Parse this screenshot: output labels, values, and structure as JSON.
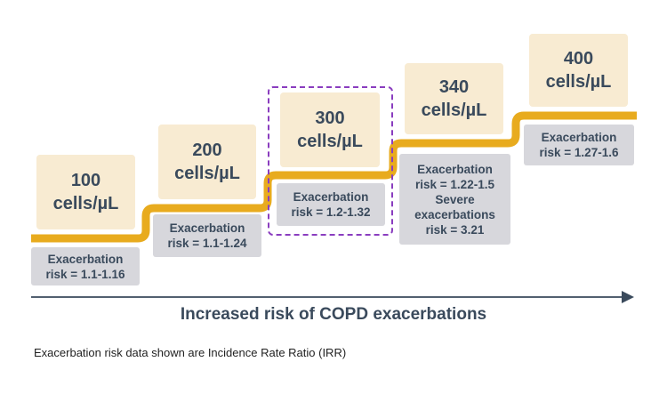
{
  "levels": [
    {
      "value": "100",
      "unit": "cells/µL",
      "risk_line1": "Exacerbation",
      "risk_line2": "risk = 1.1-1.16"
    },
    {
      "value": "200",
      "unit": "cells/µL",
      "risk_line1": "Exacerbation",
      "risk_line2": "risk = 1.1-1.24"
    },
    {
      "value": "300",
      "unit": "cells/µL",
      "risk_line1": "Exacerbation",
      "risk_line2": "risk = 1.2-1.32"
    },
    {
      "value": "340",
      "unit": "cells/µL",
      "risk_line1": "Exacerbation",
      "risk_line2": "risk = 1.22-1.5",
      "severe_line1": "Severe",
      "severe_line2": "exacerbations",
      "severe_line3": "risk = 3.21"
    },
    {
      "value": "400",
      "unit": "cells/µL",
      "risk_line1": "Exacerbation",
      "risk_line2": "risk = 1.27-1.6"
    }
  ],
  "axis_label": "Increased risk of COPD exacerbations",
  "footnote": "Exacerbation risk data shown are Incidence Rate Ratio (IRR)",
  "colors": {
    "stair": "#e8ab1e",
    "level_box": "#f8ebd2",
    "risk_box": "#d7d7dc",
    "highlight": "#8a3dbf",
    "arrow": "#3a4a5c"
  }
}
